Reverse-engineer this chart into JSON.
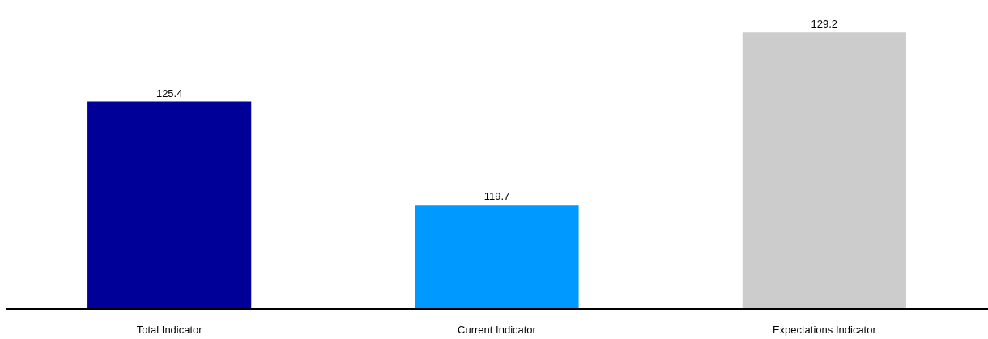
{
  "chart_data": {
    "type": "bar",
    "categories": [
      "Total Indicator",
      "Current Indicator",
      "Expectations Indicator"
    ],
    "values": [
      125.4,
      119.7,
      129.2
    ],
    "colors": [
      "#000099",
      "#0099ff",
      "#cccccc"
    ],
    "ylim": [
      114,
      131
    ],
    "data_labels": true
  }
}
